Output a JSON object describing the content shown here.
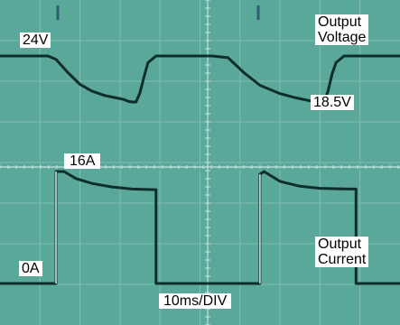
{
  "chart_data": {
    "type": "line",
    "title": "",
    "xlabel": "10ms/DIV",
    "ylabel": "",
    "grid": true,
    "x_unit": "ms",
    "xlim": [
      0,
      100
    ],
    "series": [
      {
        "name": "Output Voltage",
        "unit": "V",
        "points": [
          [
            0,
            24
          ],
          [
            12,
            24
          ],
          [
            14,
            23.6
          ],
          [
            17,
            22
          ],
          [
            20,
            20.6
          ],
          [
            23,
            19.8
          ],
          [
            26,
            19.3
          ],
          [
            29,
            19.0
          ],
          [
            31,
            18.8
          ],
          [
            32,
            18.6
          ],
          [
            33,
            18.5
          ],
          [
            34,
            18.5
          ],
          [
            35,
            19.6
          ],
          [
            36,
            21.5
          ],
          [
            37,
            23.2
          ],
          [
            39,
            24.0
          ],
          [
            53,
            24.0
          ],
          [
            57,
            23.8
          ],
          [
            61,
            22.0
          ],
          [
            65,
            20.5
          ],
          [
            70,
            19.5
          ],
          [
            74,
            19.0
          ],
          [
            78,
            18.6
          ],
          [
            79,
            18.5
          ],
          [
            81,
            18.5
          ],
          [
            82,
            19.8
          ],
          [
            83,
            21.8
          ],
          [
            84,
            23.2
          ],
          [
            86,
            24.0
          ],
          [
            100,
            24.0
          ]
        ]
      },
      {
        "name": "Output Current",
        "unit": "A",
        "points": [
          [
            0,
            0
          ],
          [
            14,
            0
          ],
          [
            14,
            16
          ],
          [
            16,
            16
          ],
          [
            19,
            15
          ],
          [
            23,
            14.3
          ],
          [
            28,
            13.8
          ],
          [
            33,
            13.5
          ],
          [
            39,
            13.4
          ],
          [
            39,
            0
          ],
          [
            65,
            0
          ],
          [
            65,
            15.6
          ],
          [
            66,
            16
          ],
          [
            70,
            14.6
          ],
          [
            75,
            13.9
          ],
          [
            80,
            13.6
          ],
          [
            87,
            13.5
          ],
          [
            89,
            13.5
          ],
          [
            89,
            0
          ],
          [
            100,
            0
          ]
        ]
      }
    ],
    "annotations": {
      "v_high": "24V",
      "v_low": "18.5V",
      "i_high": "16A",
      "i_low": "0A",
      "voltage_label_line1": "Output",
      "voltage_label_line2": "Voltage",
      "current_label_line1": "Output",
      "current_label_line2": "Current",
      "time_scale": "10ms/DIV"
    }
  }
}
